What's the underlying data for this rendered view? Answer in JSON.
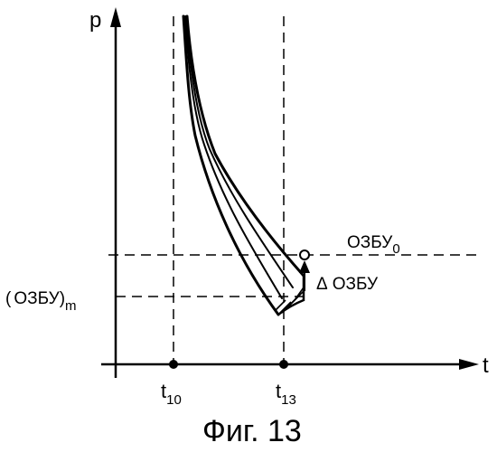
{
  "axes": {
    "y_label": "p",
    "x_label": "t"
  },
  "ticks": {
    "t10": {
      "main": "t",
      "sub": "10"
    },
    "t13": {
      "main": "t",
      "sub": "13"
    }
  },
  "levels": {
    "ozbu0": {
      "main": "ОЗБУ",
      "sub": "0"
    },
    "ozbu_m": {
      "prefix": "(",
      "main": "ОЗБУ",
      "suffix": ")",
      "sub": "m"
    },
    "delta": {
      "symbol": "Δ",
      "text": "ОЗБУ"
    }
  },
  "caption": "Фиг. 13"
}
